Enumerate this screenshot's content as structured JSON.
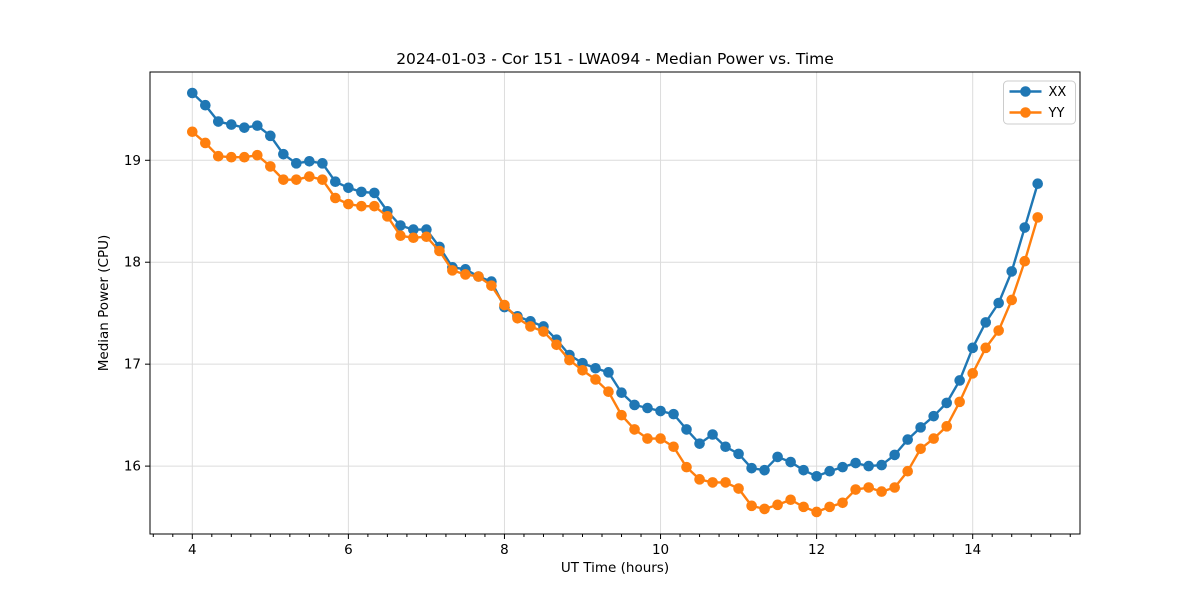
{
  "chart_data": {
    "type": "line",
    "title": "2024-01-03 - Cor 151 - LWA094 - Median Power vs. Time",
    "xlabel": "UT Time (hours)",
    "ylabel": "Median Power (CPU)",
    "xlim": [
      3.458,
      15.375
    ],
    "ylim": [
      15.334,
      19.866
    ],
    "x_major_ticks": [
      4,
      6,
      8,
      10,
      12,
      14
    ],
    "x_tick_labels": [
      "4",
      "6",
      "8",
      "10",
      "12",
      "14"
    ],
    "x_minor_tick_step": 0.25,
    "y_major_ticks": [
      16,
      17,
      18,
      19
    ],
    "y_tick_labels": [
      "16",
      "17",
      "18",
      "19"
    ],
    "grid": true,
    "grid_color": "#dcdcdc",
    "background_color": "#ffffff",
    "spine_color": "#000000",
    "legend_position": "upper right",
    "legend_border_color": "#cccccc",
    "marker": "circle",
    "x": [
      4.0,
      4.167,
      4.333,
      4.5,
      4.667,
      4.833,
      5.0,
      5.167,
      5.333,
      5.5,
      5.667,
      5.833,
      6.0,
      6.167,
      6.333,
      6.5,
      6.667,
      6.833,
      7.0,
      7.167,
      7.333,
      7.5,
      7.667,
      7.833,
      8.0,
      8.167,
      8.333,
      8.5,
      8.667,
      8.833,
      9.0,
      9.167,
      9.333,
      9.5,
      9.667,
      9.833,
      10.0,
      10.167,
      10.333,
      10.5,
      10.667,
      10.833,
      11.0,
      11.167,
      11.333,
      11.5,
      11.667,
      11.833,
      12.0,
      12.167,
      12.333,
      12.5,
      12.667,
      12.833,
      13.0,
      13.167,
      13.333,
      13.5,
      13.667,
      13.833,
      14.0,
      14.167,
      14.333,
      14.5,
      14.667,
      14.833
    ],
    "series": [
      {
        "name": "XX",
        "color": "#1f77b4",
        "values": [
          19.66,
          19.54,
          19.38,
          19.35,
          19.32,
          19.34,
          19.24,
          19.06,
          18.97,
          18.99,
          18.97,
          18.79,
          18.73,
          18.69,
          18.68,
          18.5,
          18.36,
          18.32,
          18.32,
          18.15,
          17.95,
          17.93,
          17.86,
          17.81,
          17.56,
          17.47,
          17.42,
          17.37,
          17.24,
          17.09,
          17.01,
          16.96,
          16.92,
          16.72,
          16.6,
          16.57,
          16.54,
          16.51,
          16.36,
          16.22,
          16.31,
          16.19,
          16.12,
          15.98,
          15.96,
          16.09,
          16.04,
          15.96,
          15.9,
          15.95,
          15.99,
          16.03,
          16.0,
          16.01,
          16.11,
          16.26,
          16.38,
          16.49,
          16.62,
          16.84,
          17.16,
          17.41,
          17.6,
          17.91,
          18.34,
          18.77
        ]
      },
      {
        "name": "YY",
        "color": "#ff7f0e",
        "values": [
          19.28,
          19.17,
          19.04,
          19.03,
          19.03,
          19.05,
          18.94,
          18.81,
          18.81,
          18.84,
          18.81,
          18.63,
          18.57,
          18.55,
          18.55,
          18.45,
          18.26,
          18.24,
          18.25,
          18.11,
          17.92,
          17.88,
          17.86,
          17.77,
          17.58,
          17.45,
          17.37,
          17.32,
          17.19,
          17.04,
          16.94,
          16.85,
          16.73,
          16.5,
          16.36,
          16.27,
          16.27,
          16.19,
          15.99,
          15.87,
          15.84,
          15.84,
          15.78,
          15.61,
          15.58,
          15.62,
          15.67,
          15.6,
          15.55,
          15.6,
          15.64,
          15.77,
          15.79,
          15.75,
          15.79,
          15.95,
          16.17,
          16.27,
          16.39,
          16.63,
          16.91,
          17.16,
          17.33,
          17.63,
          18.01,
          18.44
        ]
      }
    ]
  }
}
